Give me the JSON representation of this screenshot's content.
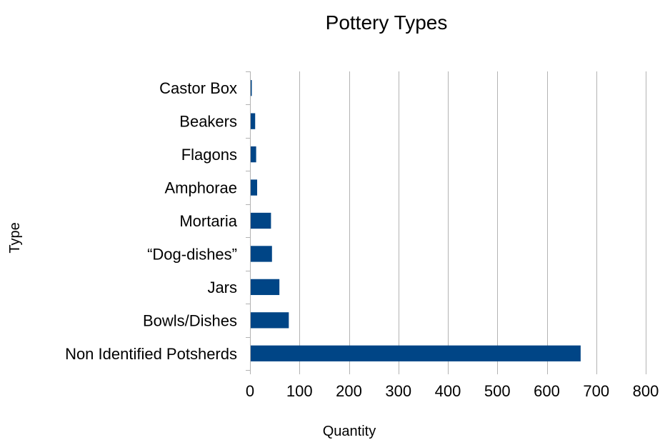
{
  "chart_data": {
    "type": "bar",
    "orientation": "horizontal",
    "title": "Pottery Types",
    "xlabel": "Quantity",
    "ylabel": "Type",
    "categories": [
      "Castor Box",
      "Beakers",
      "Flagons",
      "Amphorae",
      "Mortaria",
      "“Dog-dishes”",
      "Jars",
      "Bowls/Dishes",
      "Non Identified Potsherds"
    ],
    "values": [
      1,
      9,
      11,
      13,
      41,
      43,
      58,
      77,
      667
    ],
    "xlim": [
      0,
      800
    ],
    "xticks": [
      0,
      100,
      200,
      300,
      400,
      500,
      600,
      700,
      800
    ],
    "grid": "vertical",
    "legend": "none",
    "bar_color": "#004586"
  }
}
